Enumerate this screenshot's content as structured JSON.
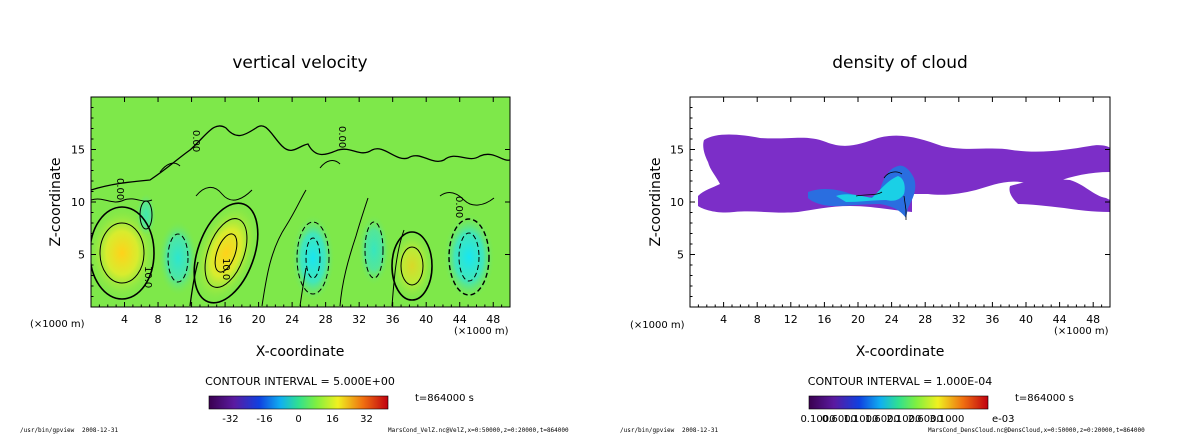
{
  "footer": {
    "left_program": "/usr/bin/gpview",
    "left_date": "2008-12-31"
  },
  "chart_data": [
    {
      "type": "heatmap",
      "title": "vertical velocity",
      "xlabel": "X-coordinate",
      "ylabel": "Z-coordinate",
      "x_unit": "(×1000 m)",
      "xlim": [
        0,
        50
      ],
      "ylim": [
        0,
        20
      ],
      "x_ticks": [
        4,
        8,
        12,
        16,
        20,
        24,
        28,
        32,
        36,
        40,
        44,
        48
      ],
      "y_ticks": [
        5,
        10,
        15
      ],
      "contour_labels": [
        "10.0",
        "10.0",
        "0.00",
        "0.00",
        "0.00",
        "0.00"
      ],
      "contour_interval": "CONTOUR INTERVAL = 5.000E+00",
      "colorbar_ticks": [
        "-32",
        "-16",
        "0",
        "16",
        "32"
      ],
      "time": "t=864000 s",
      "footer_file": "MarsCond_VelZ.nc@VelZ,x=0:50000,z=0:20000,t=864000"
    },
    {
      "type": "heatmap",
      "title": "density of cloud",
      "xlabel": "X-coordinate",
      "ylabel": "Z-coordinate",
      "x_unit": "(×1000 m)",
      "xlim": [
        0,
        50
      ],
      "ylim": [
        0,
        20
      ],
      "x_ticks": [
        4,
        8,
        12,
        16,
        20,
        24,
        28,
        32,
        36,
        40,
        44,
        48
      ],
      "y_ticks": [
        5,
        10,
        15
      ],
      "contour_interval": "CONTOUR INTERVAL = 1.000E-04",
      "colorbar_ticks": [
        "0.1000",
        "0.6000",
        "1.1000",
        "1.6000",
        "2.1000",
        "2.6000",
        "3.1000"
      ],
      "colorbar_suffix": "e-03",
      "time": "t=864000 s",
      "footer_file": "MarsCond_DensCloud.nc@DensCloud,x=0:50000,z=0:20000,t=864000"
    }
  ]
}
